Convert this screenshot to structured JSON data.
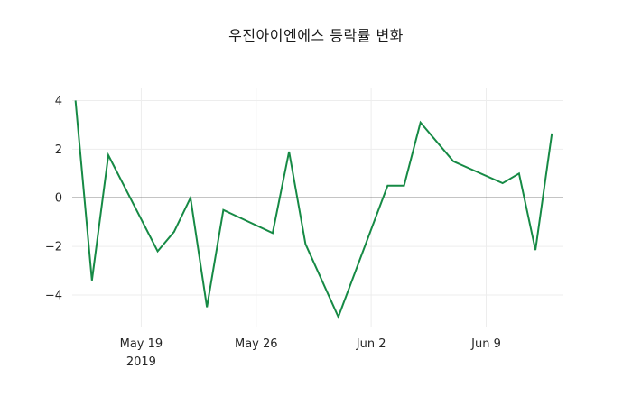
{
  "chart_data": {
    "type": "line",
    "title": "우진아이엔에스 등락률 변화",
    "xlabel": "",
    "ylabel": "",
    "xlim": [
      -0.2,
      29.7
    ],
    "ylim": [
      -5.3,
      4.5
    ],
    "grid": true,
    "grid_color": "#ededed",
    "zero_line": true,
    "zero_line_color": "#1a1a1a",
    "background": "#ffffff",
    "series": [
      {
        "name": "등락률",
        "color": "#168a45",
        "x_days": [
          0,
          1,
          2,
          5,
          6,
          7,
          8,
          9,
          12,
          13,
          14,
          16,
          19,
          20,
          21,
          23,
          26,
          27,
          28,
          29
        ],
        "values": [
          4.0,
          -3.4,
          1.75,
          -2.2,
          -1.4,
          0.0,
          -4.5,
          -0.5,
          -1.45,
          1.9,
          -1.9,
          -4.9,
          0.5,
          0.5,
          3.1,
          1.5,
          0.6,
          1.0,
          -2.15,
          2.65
        ]
      }
    ],
    "x_tick_days": [
      4,
      11,
      18,
      25
    ],
    "x_tick_labels": [
      "May 19",
      "May 26",
      "Jun 2",
      "Jun 9"
    ],
    "x_tick_sublabels": [
      "2019",
      "",
      "",
      ""
    ],
    "y_ticks": [
      -4,
      -2,
      0,
      2,
      4
    ],
    "y_tick_labels": [
      "−4",
      "−2",
      "0",
      "2",
      "4"
    ]
  }
}
